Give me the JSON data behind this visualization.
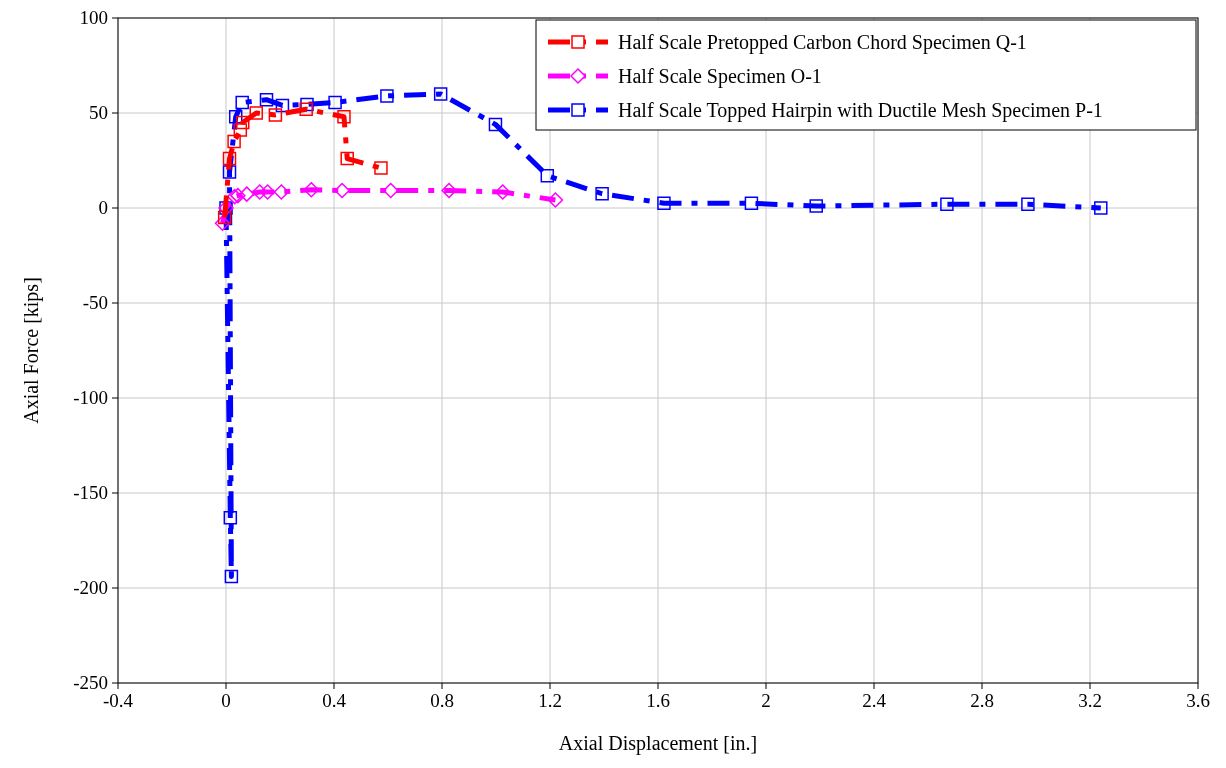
{
  "chart_data": {
    "type": "line",
    "xlabel": "Axial Displacement [in.]",
    "ylabel": "Axial Force [kips]",
    "xlim": [
      -0.4,
      3.6
    ],
    "xticks": [
      -0.4,
      0,
      0.4,
      0.8,
      1.2,
      1.6,
      2,
      2.4,
      2.8,
      3.2,
      3.6
    ],
    "ylim": [
      -250,
      100
    ],
    "yticks": [
      -250,
      -200,
      -150,
      -100,
      -50,
      0,
      50,
      100
    ],
    "grid": true,
    "legend": "top right",
    "line_style": "dashed",
    "series": [
      {
        "name": "Half Scale Pretopped Carbon Chord Specimen Q-1",
        "color": "#ff0000",
        "marker": "square",
        "x": [
          -0.005,
          0.013,
          0.03,
          0.053,
          0.062,
          0.112,
          0.183,
          0.297,
          0.437,
          0.449,
          0.574
        ],
        "values": [
          -5,
          26,
          35,
          41,
          45,
          50,
          49,
          52,
          48,
          26,
          21
        ]
      },
      {
        "name": "Half Scale Specimen O-1",
        "color": "#ff00ff",
        "marker": "diamond",
        "x": [
          -0.013,
          0,
          0.032,
          0.044,
          0.077,
          0.125,
          0.154,
          0.205,
          0.316,
          0.43,
          0.61,
          0.826,
          1.025,
          1.22
        ],
        "values": [
          -8,
          0,
          6,
          6.5,
          7.3,
          8.4,
          8.4,
          8.4,
          9.6,
          9.2,
          9.2,
          9.2,
          8.4,
          4.2
        ]
      },
      {
        "name": "Half Scale Topped Hairpin with Ductile Mesh Specimen P-1",
        "color": "#0000ff",
        "marker": "square",
        "x": [
          0,
          0.016,
          0.02,
          0.013,
          0.036,
          0.06,
          0.15,
          0.209,
          0.3,
          0.404,
          0.596,
          0.795,
          0.998,
          1.19,
          1.393,
          1.622,
          1.946,
          2.186,
          2.67,
          2.97,
          3.24
        ],
        "values": [
          0,
          -163,
          -194,
          19,
          48,
          55.5,
          57,
          54,
          54.5,
          55.5,
          59,
          60,
          44,
          17,
          7.5,
          2.5,
          2.5,
          1,
          2,
          2,
          0
        ]
      }
    ]
  }
}
